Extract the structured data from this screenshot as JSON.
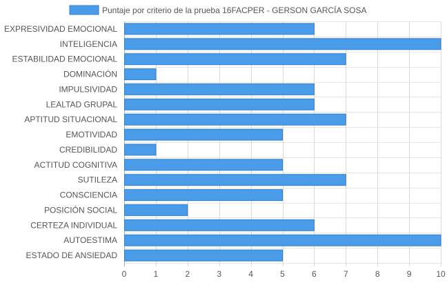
{
  "chart_data": {
    "type": "bar",
    "orientation": "horizontal",
    "series": [
      {
        "name": "Puntaje por criterio de la prueba 16FACPER - GERSON GARCÍA SOSA",
        "color": "#4a9be8",
        "values": [
          6,
          10,
          7,
          1,
          6,
          6,
          7,
          5,
          1,
          5,
          7,
          5,
          2,
          6,
          10,
          5
        ]
      }
    ],
    "categories": [
      "EXPRESIVIDAD EMOCIONAL",
      "INTELIGENCIA",
      "ESTABILIDAD EMOCIONAL",
      "DOMINACIÓN",
      "IMPULSIVIDAD",
      "LEALTAD GRUPAL",
      "APTITUD SITUACIONAL",
      "EMOTIVIDAD",
      "CREDIBILIDAD",
      "ACTITUD COGNITIVA",
      "SUTILEZA",
      "CONSCIENCIA",
      "POSICIÓN SOCIAL",
      "CERTEZA INDIVIDUAL",
      "AUTOESTIMA",
      "ESTADO DE ANSIEDAD"
    ],
    "xlim": [
      0,
      10
    ],
    "xticks": [
      "0",
      "1",
      "2",
      "3",
      "4",
      "5",
      "6",
      "7",
      "8",
      "9",
      "10"
    ],
    "grid": true,
    "legend_position": "top"
  }
}
